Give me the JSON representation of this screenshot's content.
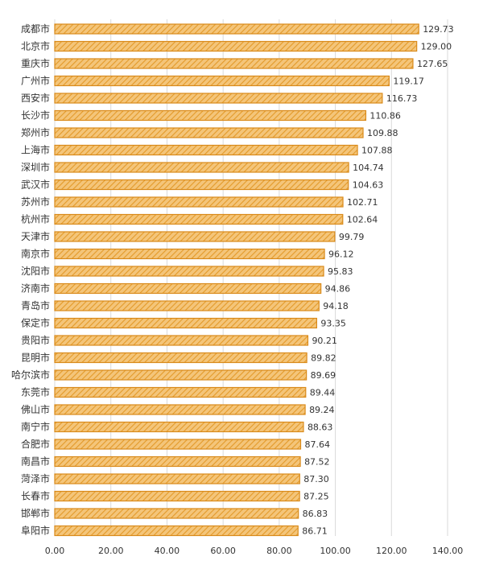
{
  "chart_data": {
    "type": "bar",
    "orientation": "horizontal",
    "categories": [
      "成都市",
      "北京市",
      "重庆市",
      "广州市",
      "西安市",
      "长沙市",
      "郑州市",
      "上海市",
      "深圳市",
      "武汉市",
      "苏州市",
      "杭州市",
      "天津市",
      "南京市",
      "沈阳市",
      "济南市",
      "青岛市",
      "保定市",
      "贵阳市",
      "昆明市",
      "哈尔滨市",
      "东莞市",
      "佛山市",
      "南宁市",
      "合肥市",
      "南昌市",
      "菏泽市",
      "长春市",
      "邯郸市",
      "阜阳市"
    ],
    "values": [
      129.73,
      129.0,
      127.65,
      119.17,
      116.73,
      110.86,
      109.88,
      107.88,
      104.74,
      104.63,
      102.71,
      102.64,
      99.79,
      96.12,
      95.83,
      94.86,
      94.18,
      93.35,
      90.21,
      89.82,
      89.69,
      89.44,
      89.24,
      88.63,
      87.64,
      87.52,
      87.3,
      87.25,
      86.83,
      86.71
    ],
    "value_labels": [
      "129.73",
      "129.00",
      "127.65",
      "119.17",
      "116.73",
      "110.86",
      "109.88",
      "107.88",
      "104.74",
      "104.63",
      "102.71",
      "102.64",
      "99.79",
      "96.12",
      "95.83",
      "94.86",
      "94.18",
      "93.35",
      "90.21",
      "89.82",
      "89.69",
      "89.44",
      "89.24",
      "88.63",
      "87.64",
      "87.52",
      "87.30",
      "87.25",
      "86.83",
      "86.71"
    ],
    "xlim": [
      0,
      140
    ],
    "x_ticks": [
      "0.00",
      "20.00",
      "40.00",
      "60.00",
      "80.00",
      "100.00",
      "120.00",
      "140.00"
    ],
    "x_tick_values": [
      0,
      20,
      40,
      60,
      80,
      100,
      120,
      140
    ],
    "grid": true,
    "legend": "none",
    "colors": {
      "bar_fill": "#F4C57A",
      "bar_stripe": "#E39A2A",
      "bar_border": "#D98A1A",
      "grid": "#D9D9D9",
      "text": "#333333"
    }
  }
}
